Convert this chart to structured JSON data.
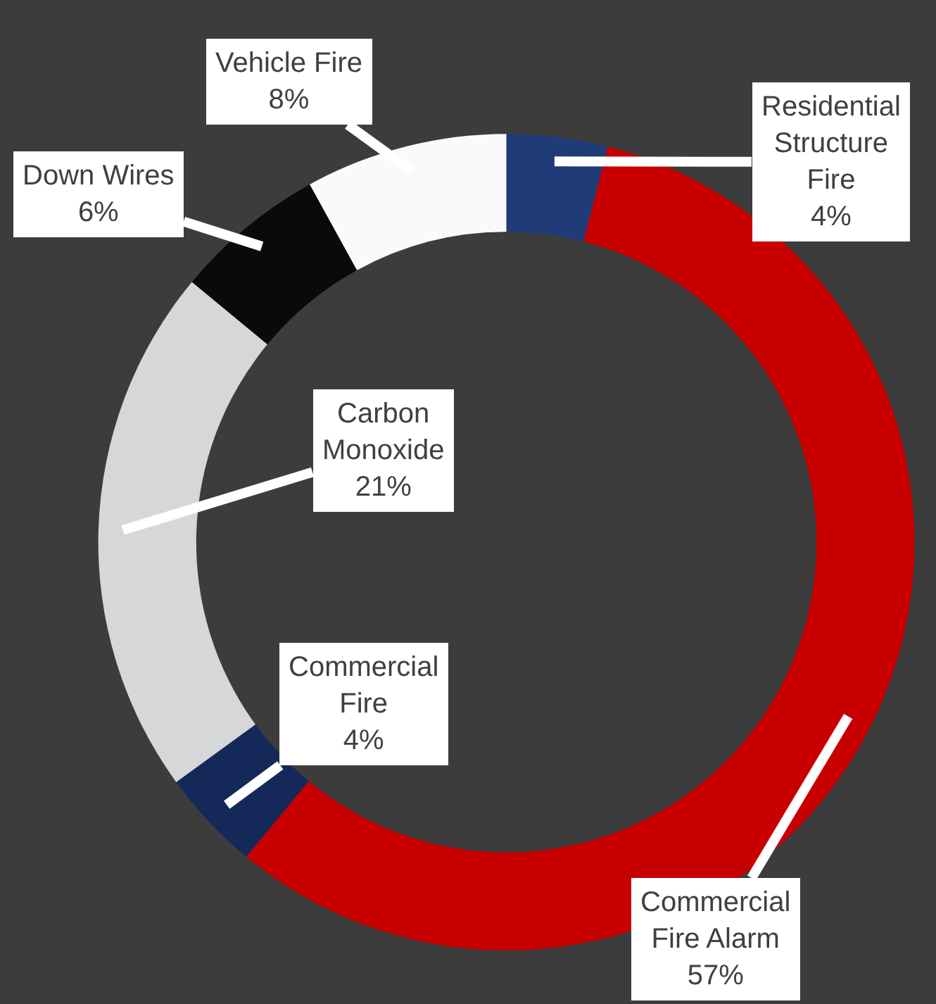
{
  "chart_data": {
    "type": "donut",
    "categories": [
      "Residential Structure Fire",
      "Commercial Fire Alarm",
      "Commercial Fire",
      "Carbon Monoxide",
      "Down Wires",
      "Vehicle Fire"
    ],
    "values": [
      4,
      57,
      4,
      21,
      6,
      8
    ],
    "value_labels": [
      "4%",
      "57%",
      "4%",
      "21%",
      "6%",
      "8%"
    ],
    "colors": [
      "#1f3b78",
      "#c80000",
      "#14295a",
      "#d6d7d9",
      "#0a0a0a",
      "#fafafa"
    ],
    "legend": false
  }
}
